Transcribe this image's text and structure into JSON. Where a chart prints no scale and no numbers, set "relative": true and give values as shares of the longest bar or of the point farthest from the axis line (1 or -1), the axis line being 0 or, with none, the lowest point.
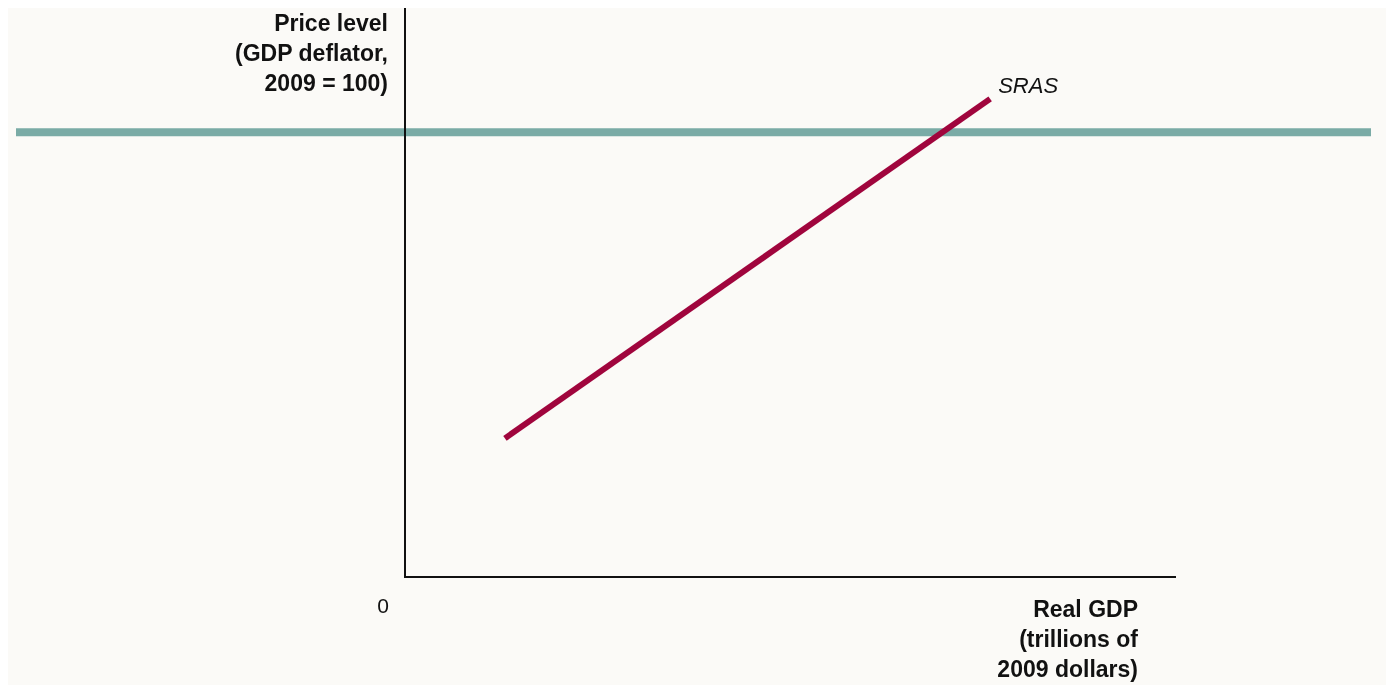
{
  "chart_data": {
    "type": "line",
    "relative": true,
    "xlabel": "Real GDP\n(trillions of\n2009 dollars)",
    "ylabel": "Price level\n(GDP deflator,\n2009 = 100)",
    "categories": [
      null,
      null
    ],
    "annotations": [
      "0"
    ],
    "series": [
      {
        "name": "SRAS",
        "color": "#a0053d",
        "values": [
          0.29,
          1
        ]
      }
    ],
    "ref_lines": [
      {
        "axis": "y",
        "value": 0.93,
        "color": "#7aaba6"
      }
    ],
    "grid": false,
    "legend": false,
    "marker": "none",
    "line_style": "solid"
  }
}
